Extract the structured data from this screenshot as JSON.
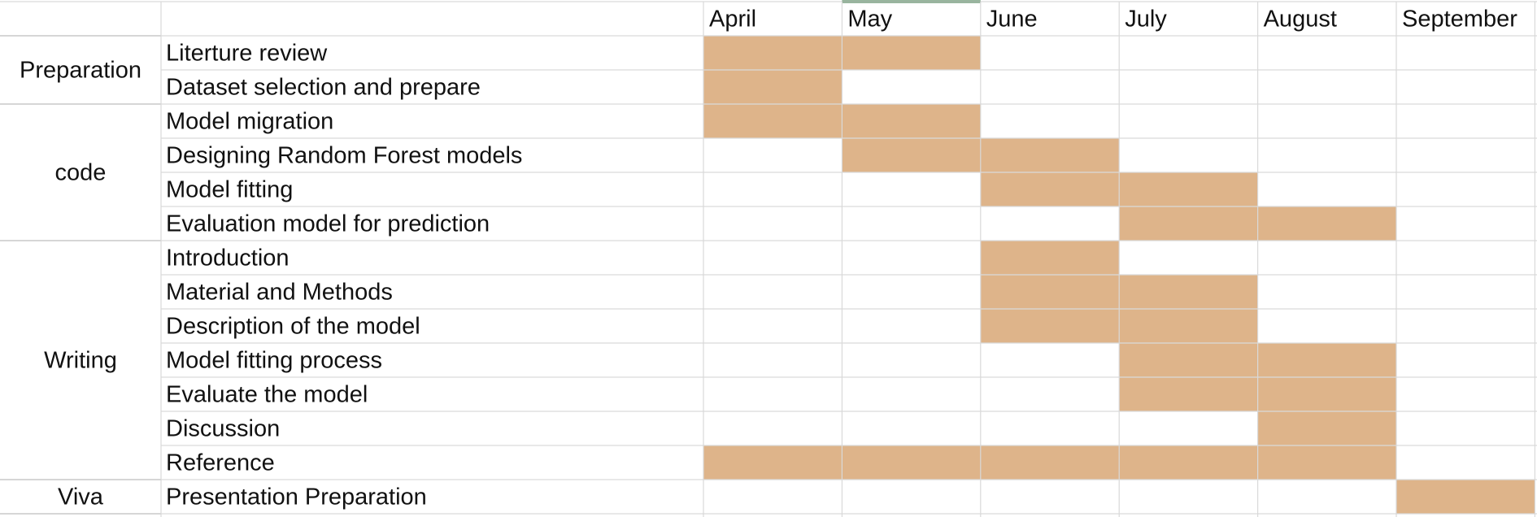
{
  "colors": {
    "bar_fill": "#deb48a",
    "grid": "#d9d9d9",
    "top_accent": "#2f6f3e",
    "text": "#111111"
  },
  "chart_data": {
    "type": "table",
    "title": "",
    "months": [
      "April",
      "May",
      "June",
      "July",
      "August",
      "September"
    ],
    "groups": [
      {
        "name": "Preparation",
        "tasks": [
          {
            "task": "Literture review",
            "months": [
              "April",
              "May"
            ]
          },
          {
            "task": "Dataset selection and prepare",
            "months": [
              "April"
            ]
          }
        ]
      },
      {
        "name": "code",
        "tasks": [
          {
            "task": "Model migration",
            "months": [
              "April",
              "May"
            ]
          },
          {
            "task": "Designing Random Forest models",
            "months": [
              "May",
              "June"
            ]
          },
          {
            "task": "Model fitting",
            "months": [
              "June",
              "July"
            ]
          },
          {
            "task": "Evaluation model for prediction",
            "months": [
              "July",
              "August"
            ]
          }
        ]
      },
      {
        "name": "Writing",
        "tasks": [
          {
            "task": "Introduction",
            "months": [
              "June"
            ]
          },
          {
            "task": "Material and Methods",
            "months": [
              "June",
              "July"
            ]
          },
          {
            "task": "Description of the model",
            "months": [
              "June",
              "July"
            ]
          },
          {
            "task": "Model fitting process",
            "months": [
              "July",
              "August"
            ]
          },
          {
            "task": "Evaluate the model",
            "months": [
              "July",
              "August"
            ]
          },
          {
            "task": "Discussion",
            "months": [
              "August"
            ]
          },
          {
            "task": "Reference",
            "months": [
              "April",
              "May",
              "June",
              "July",
              "August"
            ]
          }
        ]
      },
      {
        "name": "Viva",
        "tasks": [
          {
            "task": "Presentation Preparation",
            "months": [
              "September"
            ]
          }
        ]
      }
    ]
  }
}
